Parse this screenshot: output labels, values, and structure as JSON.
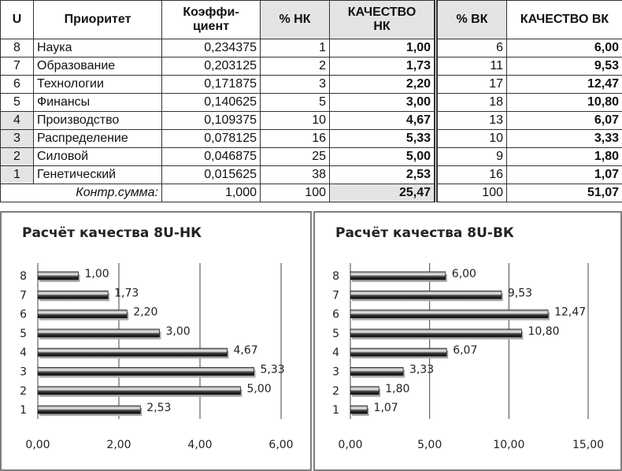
{
  "table": {
    "header": [
      "U",
      "Приоритет",
      "Коэффи-\nциент",
      "% НК",
      "КАЧЕСТВО\nНК",
      "% ВК",
      "КАЧЕСТВО ВК"
    ],
    "rows": [
      [
        "8",
        "Наука",
        "0,234375",
        "1",
        "1,00",
        "6",
        "6,00"
      ],
      [
        "7",
        "Образование",
        "0,203125",
        "2",
        "1,73",
        "11",
        "9,53"
      ],
      [
        "6",
        "Технологии",
        "0,171875",
        "3",
        "2,20",
        "17",
        "12,47"
      ],
      [
        "5",
        "Финансы",
        "0,140625",
        "5",
        "3,00",
        "18",
        "10,80"
      ],
      [
        "4",
        "Производство",
        "0,109375",
        "10",
        "4,67",
        "13",
        "6,07"
      ],
      [
        "3",
        "Распределение",
        "0,078125",
        "16",
        "5,33",
        "10",
        "3,33"
      ],
      [
        "2",
        "Силовой",
        "0,046875",
        "25",
        "5,00",
        "9",
        "1,80"
      ],
      [
        "1",
        "Генетический",
        "0,015625",
        "38",
        "2,53",
        "16",
        "1,07"
      ]
    ],
    "footer": [
      "Контр.сумма:",
      "1,000",
      "100",
      "25,47",
      "100",
      "51,07"
    ]
  },
  "chart_data": [
    {
      "type": "bar",
      "orientation": "horizontal",
      "title": "Расчёт качества 8U-НК",
      "categories": [
        "8",
        "7",
        "6",
        "5",
        "4",
        "3",
        "2",
        "1"
      ],
      "values": [
        1.0,
        1.73,
        2.2,
        3.0,
        4.67,
        5.33,
        5.0,
        2.53
      ],
      "value_labels": [
        "1,00",
        "1,73",
        "2,20",
        "3,00",
        "4,67",
        "5,33",
        "5,00",
        "2,53"
      ],
      "color": "#222222",
      "xlim": [
        0,
        6
      ],
      "xticks": [
        {
          "value": 0,
          "label": "0,00"
        },
        {
          "value": 2,
          "label": "2,00"
        },
        {
          "value": 4,
          "label": "4,00"
        },
        {
          "value": 6,
          "label": "6,00"
        }
      ],
      "grid": true
    },
    {
      "type": "bar",
      "orientation": "horizontal",
      "title": "Расчёт качества 8U-ВК",
      "categories": [
        "8",
        "7",
        "6",
        "5",
        "4",
        "3",
        "2",
        "1"
      ],
      "values": [
        6.0,
        9.53,
        12.47,
        10.8,
        6.07,
        3.33,
        1.8,
        1.07
      ],
      "value_labels": [
        "6,00",
        "9,53",
        "12,47",
        "10,80",
        "6,07",
        "3,33",
        "1,80",
        "1,07"
      ],
      "color": "#222222",
      "xlim": [
        0,
        15
      ],
      "xticks": [
        {
          "value": 0,
          "label": "0,00"
        },
        {
          "value": 5,
          "label": "5,00"
        },
        {
          "value": 10,
          "label": "10,00"
        },
        {
          "value": 15,
          "label": "15,00"
        }
      ],
      "grid": true
    }
  ]
}
